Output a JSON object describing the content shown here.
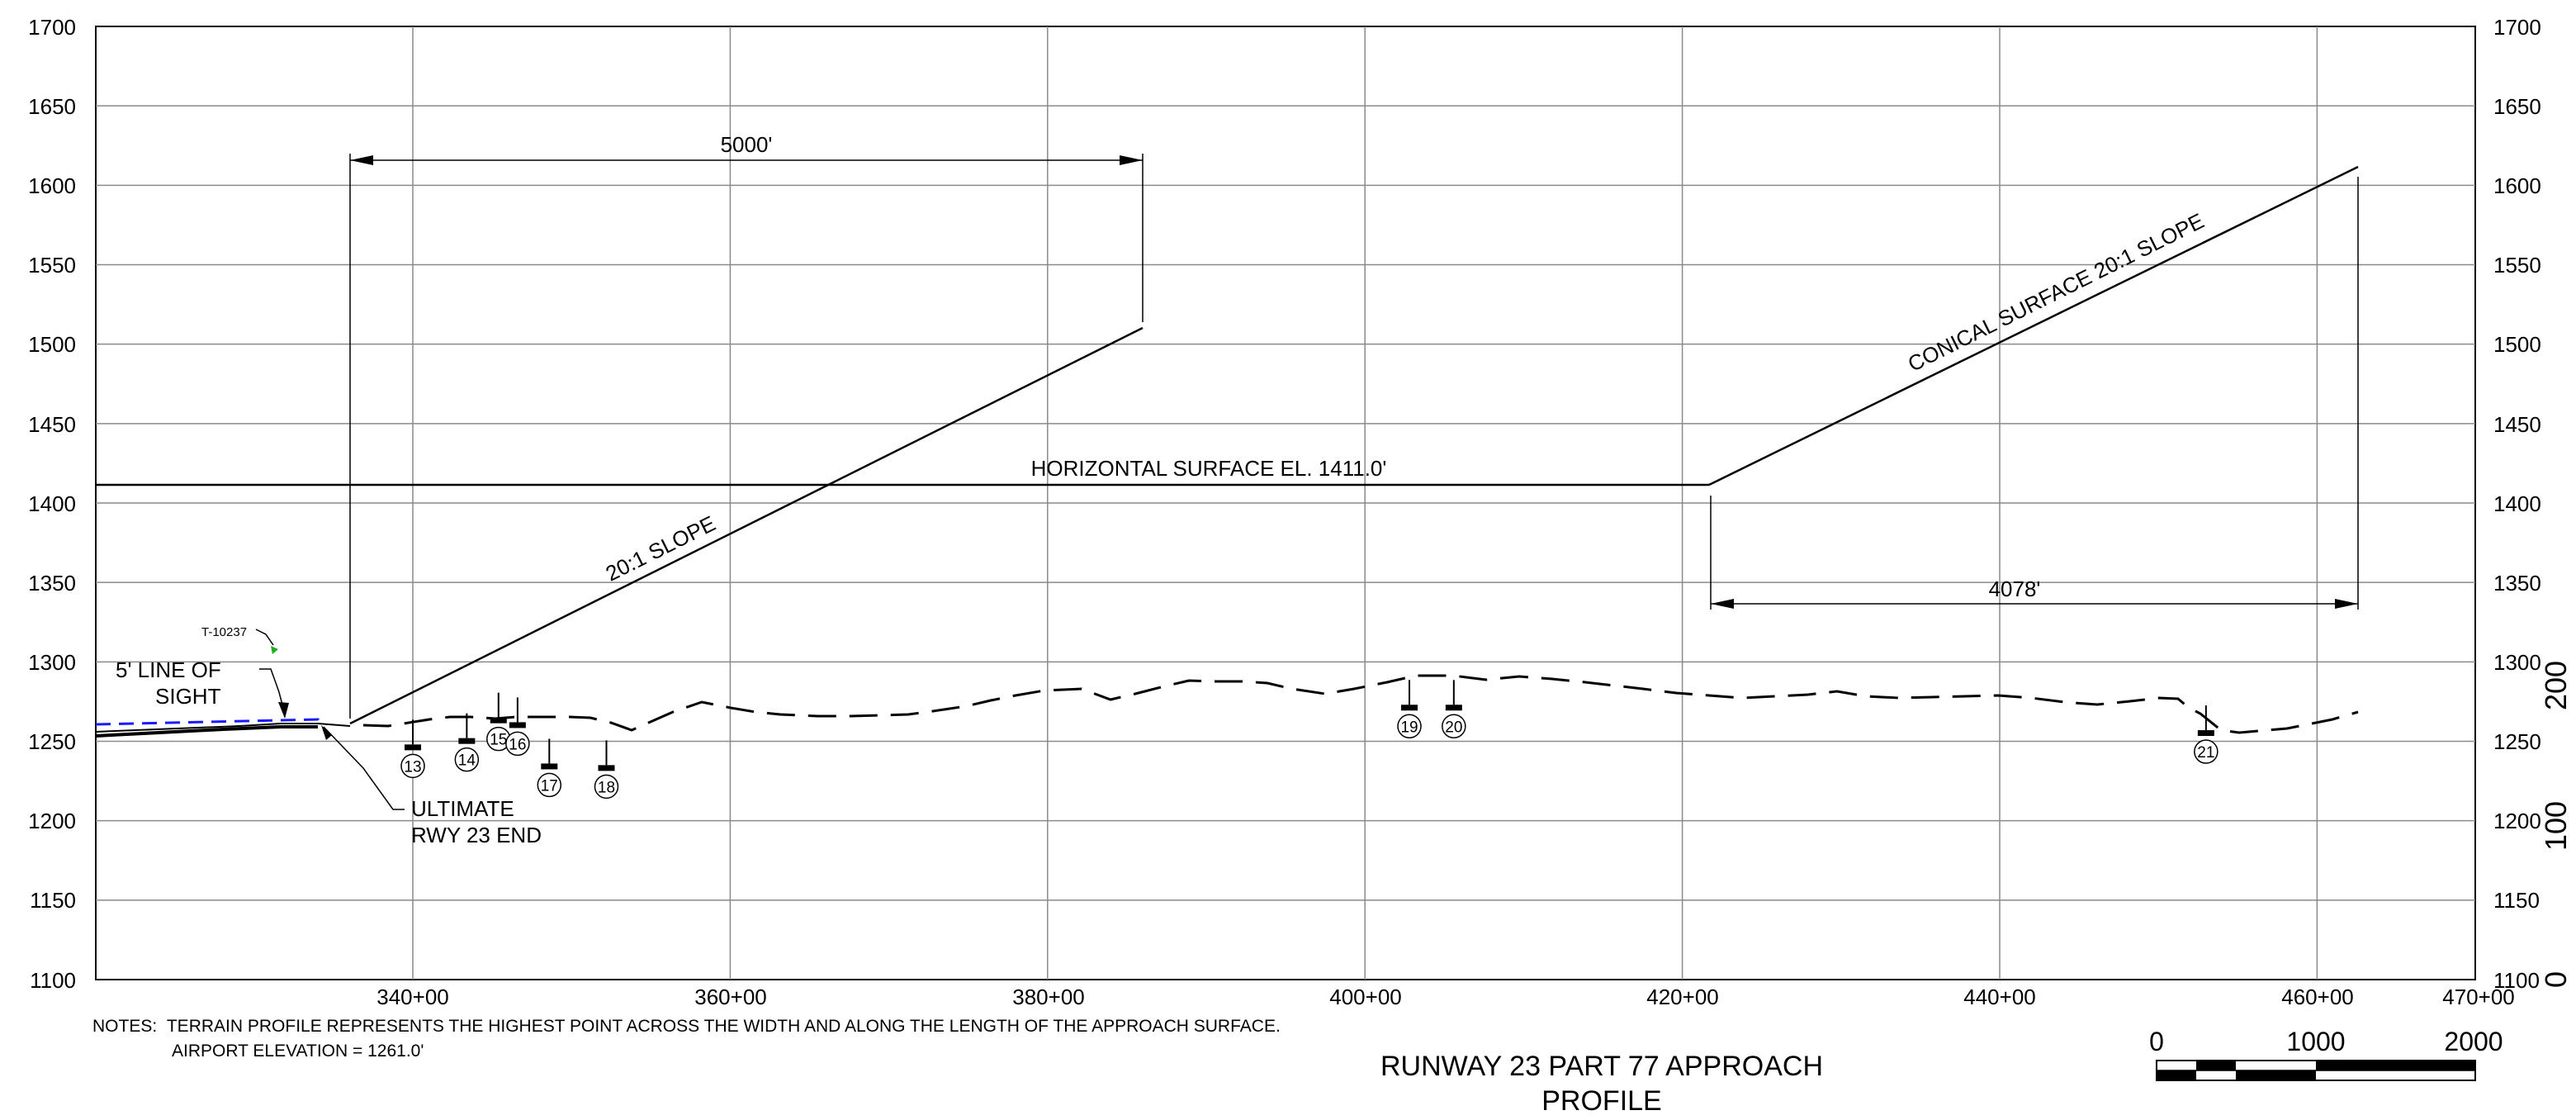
{
  "drawing": {
    "title_line1": "RUNWAY 23 PART 77 APPROACH",
    "title_line2": "PROFILE",
    "notes_label": "NOTES:",
    "notes_line1": "TERRAIN PROFILE REPRESENTS THE HIGHEST POINT ACROSS THE WIDTH AND ALONG THE LENGTH OF THE APPROACH SURFACE.",
    "notes_line2": "AIRPORT ELEVATION = 1261.0'"
  },
  "axes": {
    "elevation_ticks": [
      "1700",
      "1650",
      "1600",
      "1550",
      "1500",
      "1450",
      "1400",
      "1350",
      "1300",
      "1250",
      "1200",
      "1150",
      "1100"
    ],
    "station_ticks": [
      "340+00",
      "360+00",
      "380+00",
      "400+00",
      "420+00",
      "440+00",
      "460+00",
      "470+00"
    ],
    "secondary_ticks": [
      "200",
      "100",
      "0"
    ]
  },
  "labels": {
    "dim_5000": "5000'",
    "dim_4078": "4078'",
    "horizontal_surface": "HORIZONTAL SURFACE EL. 1411.0'",
    "slope_20_1": "20:1 SLOPE",
    "conical_surface": "CONICAL SURFACE 20:1 SLOPE",
    "line_of_sight_1": "5' LINE OF",
    "line_of_sight_2": "SIGHT",
    "runway_end_1": "ULTIMATE",
    "runway_end_2": "RWY 23 END",
    "tag_t10237": "T-10237"
  },
  "obstructions": [
    {
      "id": "13",
      "station": 340.0,
      "elev": 1248
    },
    {
      "id": "14",
      "station": 343.4,
      "elev": 1252
    },
    {
      "id": "15",
      "station": 345.4,
      "elev": 1265
    },
    {
      "id": "16",
      "station": 346.6,
      "elev": 1262
    },
    {
      "id": "17",
      "station": 348.6,
      "elev": 1236
    },
    {
      "id": "18",
      "station": 352.2,
      "elev": 1235
    },
    {
      "id": "19",
      "station": 402.8,
      "elev": 1273
    },
    {
      "id": "20",
      "station": 405.6,
      "elev": 1273
    },
    {
      "id": "21",
      "station": 453.0,
      "elev": 1257
    }
  ],
  "scale_bar": {
    "labels": [
      "0",
      "1000",
      "2000"
    ],
    "units_per_segment": 1000
  }
}
